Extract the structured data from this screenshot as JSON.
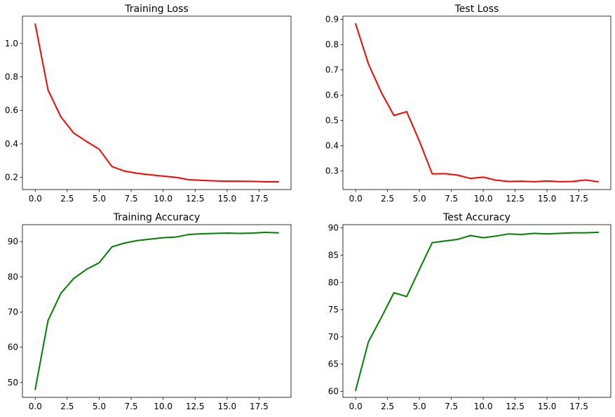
{
  "chart_data": [
    {
      "type": "line",
      "title": "Training Loss",
      "xlabel": "",
      "ylabel": "",
      "color": "#ff0000",
      "x": [
        0,
        1,
        2,
        3,
        4,
        5,
        6,
        7,
        8,
        9,
        10,
        11,
        12,
        13,
        14,
        15,
        16,
        17,
        18,
        19
      ],
      "values": [
        1.115,
        0.722,
        0.562,
        0.465,
        0.415,
        0.368,
        0.264,
        0.237,
        0.224,
        0.215,
        0.207,
        0.2,
        0.186,
        0.182,
        0.179,
        0.177,
        0.177,
        0.176,
        0.173,
        0.173
      ],
      "xlim": [
        -1.0,
        20.0
      ],
      "ylim": [
        0.127,
        1.163
      ],
      "xticks": [
        0.0,
        2.5,
        5.0,
        7.5,
        10.0,
        12.5,
        15.0,
        17.5
      ],
      "xtick_labels": [
        "0.0",
        "2.5",
        "5.0",
        "7.5",
        "10.0",
        "12.5",
        "15.0",
        "17.5"
      ],
      "yticks": [
        0.2,
        0.4,
        0.6,
        0.8,
        1.0
      ],
      "ytick_labels": [
        "0.2",
        "0.4",
        "0.6",
        "0.8",
        "1.0"
      ],
      "grid": false
    },
    {
      "type": "line",
      "title": "Test Loss",
      "xlabel": "",
      "ylabel": "",
      "color": "#ff0000",
      "x": [
        0,
        1,
        2,
        3,
        4,
        5,
        6,
        7,
        8,
        9,
        10,
        11,
        12,
        13,
        14,
        15,
        16,
        17,
        18,
        19
      ],
      "values": [
        0.882,
        0.724,
        0.612,
        0.52,
        0.535,
        0.418,
        0.289,
        0.29,
        0.284,
        0.271,
        0.276,
        0.264,
        0.259,
        0.26,
        0.258,
        0.261,
        0.258,
        0.259,
        0.265,
        0.258
      ],
      "xlim": [
        -1.0,
        20.0
      ],
      "ylim": [
        0.227,
        0.913
      ],
      "xticks": [
        0.0,
        2.5,
        5.0,
        7.5,
        10.0,
        12.5,
        15.0,
        17.5
      ],
      "xtick_labels": [
        "0.0",
        "2.5",
        "5.0",
        "7.5",
        "10.0",
        "12.5",
        "15.0",
        "17.5"
      ],
      "yticks": [
        0.3,
        0.4,
        0.5,
        0.6,
        0.7,
        0.8,
        0.9
      ],
      "ytick_labels": [
        "0.3",
        "0.4",
        "0.5",
        "0.6",
        "0.7",
        "0.8",
        "0.9"
      ],
      "grid": false
    },
    {
      "type": "line",
      "title": "Training Accuracy",
      "xlabel": "",
      "ylabel": "",
      "color": "#008000",
      "x": [
        0,
        1,
        2,
        3,
        4,
        5,
        6,
        7,
        8,
        9,
        10,
        11,
        12,
        13,
        14,
        15,
        16,
        17,
        18,
        19
      ],
      "values": [
        48.1,
        67.6,
        75.3,
        79.5,
        82.1,
        84.0,
        88.5,
        89.6,
        90.3,
        90.7,
        91.1,
        91.3,
        92.0,
        92.2,
        92.3,
        92.4,
        92.3,
        92.4,
        92.6,
        92.5
      ],
      "xlim": [
        -1.0,
        20.0
      ],
      "ylim": [
        45.8,
        94.8
      ],
      "xticks": [
        0.0,
        2.5,
        5.0,
        7.5,
        10.0,
        12.5,
        15.0,
        17.5
      ],
      "xtick_labels": [
        "0.0",
        "2.5",
        "5.0",
        "7.5",
        "10.0",
        "12.5",
        "15.0",
        "17.5"
      ],
      "yticks": [
        50,
        60,
        70,
        80,
        90
      ],
      "ytick_labels": [
        "50",
        "60",
        "70",
        "80",
        "90"
      ],
      "grid": false
    },
    {
      "type": "line",
      "title": "Test Accuracy",
      "xlabel": "",
      "ylabel": "",
      "color": "#008000",
      "x": [
        0,
        1,
        2,
        3,
        4,
        5,
        6,
        7,
        8,
        9,
        10,
        11,
        12,
        13,
        14,
        15,
        16,
        17,
        18,
        19
      ],
      "values": [
        60.2,
        69.1,
        73.5,
        78.1,
        77.4,
        82.4,
        87.3,
        87.6,
        87.9,
        88.6,
        88.2,
        88.5,
        88.9,
        88.8,
        89.0,
        88.9,
        89.0,
        89.1,
        89.1,
        89.2
      ],
      "xlim": [
        -1.0,
        20.0
      ],
      "ylim": [
        58.9,
        90.6
      ],
      "xticks": [
        0.0,
        2.5,
        5.0,
        7.5,
        10.0,
        12.5,
        15.0,
        17.5
      ],
      "xtick_labels": [
        "0.0",
        "2.5",
        "5.0",
        "7.5",
        "10.0",
        "12.5",
        "15.0",
        "17.5"
      ],
      "yticks": [
        60,
        65,
        70,
        75,
        80,
        85,
        90
      ],
      "ytick_labels": [
        "60",
        "65",
        "70",
        "75",
        "80",
        "85",
        "90"
      ],
      "grid": false
    }
  ]
}
